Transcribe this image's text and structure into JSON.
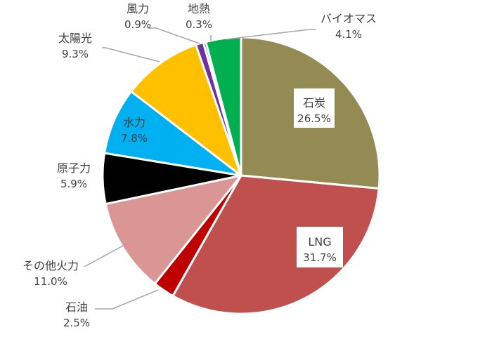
{
  "chart_data": {
    "type": "pie",
    "start_angle_deg": 0,
    "direction": "clockwise",
    "slices": [
      {
        "name": "石炭",
        "value": 26.5,
        "display": "26.5%",
        "color": "#948A54"
      },
      {
        "name": "LNG",
        "value": 31.7,
        "display": "31.7%",
        "color": "#C0504D"
      },
      {
        "name": "石油",
        "value": 2.5,
        "display": "2.5%",
        "color": "#C00000"
      },
      {
        "name": "その他火力",
        "value": 11.0,
        "display": "11.0%",
        "color": "#D99694"
      },
      {
        "name": "原子力",
        "value": 5.9,
        "display": "5.9%",
        "color": "#000000"
      },
      {
        "name": "水力",
        "value": 7.8,
        "display": "7.8%",
        "color": "#00B0F0"
      },
      {
        "name": "太陽光",
        "value": 9.3,
        "display": "9.3%",
        "color": "#FFC000"
      },
      {
        "name": "風力",
        "value": 0.9,
        "display": "0.9%",
        "color": "#7030A0"
      },
      {
        "name": "地熱",
        "value": 0.3,
        "display": "0.3%",
        "color": "#0070C0"
      },
      {
        "name": "バイオマス",
        "value": 4.1,
        "display": "4.1%",
        "color": "#00B050"
      }
    ]
  }
}
